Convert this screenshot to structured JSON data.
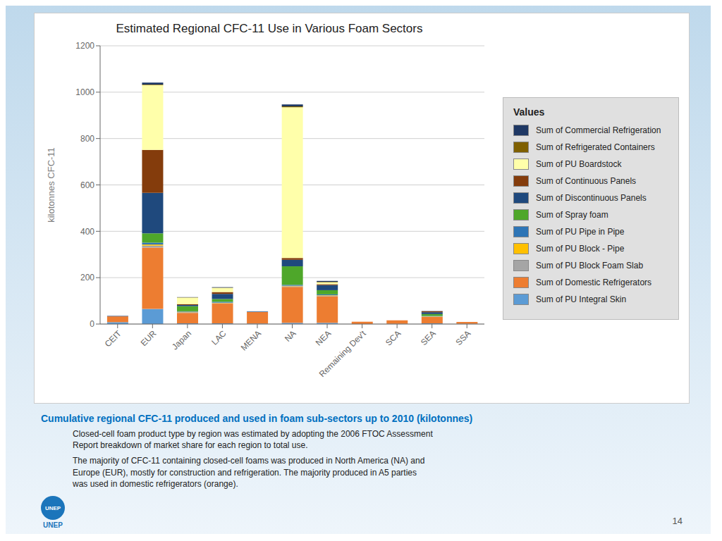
{
  "chart_data": {
    "type": "bar",
    "stacked": true,
    "title": "Estimated Regional CFC-11 Use in Various Foam Sectors",
    "ylabel": "kilotonnes CFC-11",
    "categories": [
      "CEIT",
      "EUR",
      "Japan",
      "LAC",
      "MENA",
      "NA",
      "NEA",
      "Remaining Dev't",
      "SCA",
      "SEA",
      "SSA"
    ],
    "series": [
      {
        "name": "Sum of PU Integral Skin",
        "color": "#5B9BD5",
        "values": [
          8,
          65,
          3,
          3,
          2,
          5,
          5,
          0,
          1,
          3,
          1
        ]
      },
      {
        "name": "Sum of Domestic Refrigerators",
        "color": "#ED7D31",
        "values": [
          25,
          265,
          45,
          85,
          50,
          155,
          115,
          10,
          15,
          28,
          8
        ]
      },
      {
        "name": "Sum of PU Block Foam Slab",
        "color": "#A5A5A5",
        "values": [
          0,
          8,
          3,
          2,
          0,
          3,
          2,
          0,
          0,
          1,
          0
        ]
      },
      {
        "name": "Sum of PU Block - Pipe",
        "color": "#FFC000",
        "values": [
          0,
          5,
          2,
          2,
          0,
          2,
          2,
          0,
          0,
          1,
          0
        ]
      },
      {
        "name": "Sum of PU Pipe in Pipe",
        "color": "#2E75B6",
        "values": [
          0,
          8,
          2,
          4,
          2,
          4,
          4,
          0,
          0,
          2,
          0
        ]
      },
      {
        "name": "Sum of Spray foam",
        "color": "#4EA72A",
        "values": [
          0,
          40,
          22,
          12,
          0,
          80,
          18,
          0,
          0,
          8,
          0
        ]
      },
      {
        "name": "Sum of Discontinuous Panels",
        "color": "#1F497D",
        "values": [
          0,
          175,
          5,
          22,
          0,
          28,
          22,
          0,
          0,
          8,
          0
        ]
      },
      {
        "name": "Sum of Continuous Panels",
        "color": "#843C0C",
        "values": [
          0,
          185,
          4,
          8,
          0,
          8,
          4,
          0,
          0,
          4,
          0
        ]
      },
      {
        "name": "Sum of PU Boardstock",
        "color": "#FFFFAA",
        "values": [
          0,
          280,
          28,
          18,
          0,
          650,
          8,
          0,
          0,
          0,
          0
        ]
      },
      {
        "name": "Sum of Refrigerated Containers",
        "color": "#7F6000",
        "values": [
          0,
          2,
          1,
          1,
          0,
          4,
          2,
          0,
          0,
          0,
          0
        ]
      },
      {
        "name": "Sum of Commercial Refrigeration",
        "color": "#1F3864",
        "values": [
          2,
          8,
          1,
          2,
          1,
          8,
          4,
          0,
          0,
          1,
          0
        ]
      }
    ],
    "ylim": [
      0,
      1200
    ],
    "yticks": [
      0,
      200,
      400,
      600,
      800,
      1000,
      1200
    ],
    "grid": true,
    "legend": "right",
    "legend_title": "Values",
    "annotations": [
      "Cumulative regional CFC-11 produced and used in foam sub-sectors up to 2010 (kilotonnes)",
      "Closed-cell foam product type by region was estimated by adopting the 2006 FTOC Assessment\nReport breakdown of market share for each region to total use.",
      "The majority of CFC-11 containing closed-cell foams was produced in North America (NA) and\nEurope (EUR), mostly for construction and refrigeration.  The majority produced in A5 parties\nwas used in domestic refrigerators (orange).",
      "UNEP",
      "UNEP",
      "14"
    ]
  }
}
